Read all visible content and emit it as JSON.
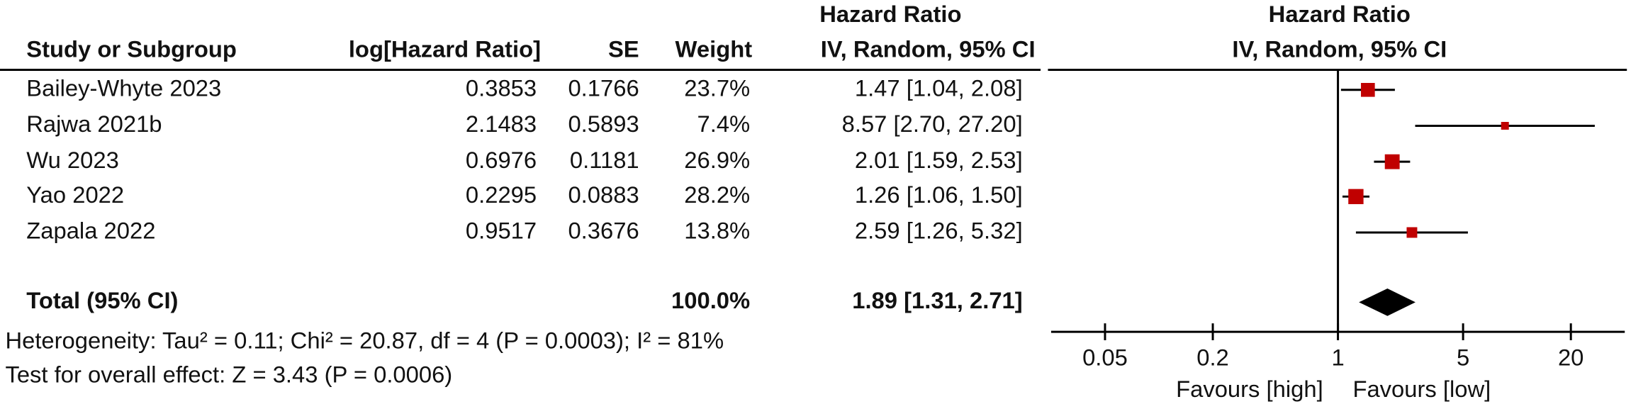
{
  "table": {
    "group_header": "Hazard Ratio",
    "columns": [
      "Study or Subgroup",
      "log[Hazard Ratio]",
      "SE",
      "Weight",
      "IV, Random, 95% CI"
    ],
    "rows": [
      [
        "Bailey-Whyte 2023",
        "0.3853",
        "0.1766",
        "23.7%",
        "1.47 [1.04, 2.08]"
      ],
      [
        "Rajwa 2021b",
        "2.1483",
        "0.5893",
        "7.4%",
        "8.57 [2.70, 27.20]"
      ],
      [
        "Wu 2023",
        "0.6976",
        "0.1181",
        "26.9%",
        "2.01 [1.59, 2.53]"
      ],
      [
        "Yao 2022",
        "0.2295",
        "0.0883",
        "28.2%",
        "1.26 [1.06, 1.50]"
      ],
      [
        "Zapala 2022",
        "0.9517",
        "0.3676",
        "13.8%",
        "2.59 [1.26, 5.32]"
      ]
    ],
    "total": [
      "Total (95% CI)",
      "100.0%",
      "1.89 [1.31, 2.71]"
    ],
    "heterogeneity": "Heterogeneity: Tau² = 0.11; Chi² = 20.87, df = 4 (P = 0.0003); I² = 81%",
    "overall_effect": "Test for overall effect: Z = 3.43 (P = 0.0006)"
  },
  "chart_data": {
    "type": "forest",
    "title": "Hazard Ratio",
    "subtitle": "IV, Random, 95% CI",
    "hr": [
      1.47,
      8.57,
      2.01,
      1.26,
      2.59
    ],
    "ci_low": [
      1.04,
      2.7,
      1.59,
      1.06,
      1.26
    ],
    "ci_high": [
      2.08,
      27.2,
      2.53,
      1.5,
      5.32
    ],
    "weights": [
      23.7,
      7.4,
      26.9,
      28.2,
      13.8
    ],
    "total": {
      "hr": 1.89,
      "ci_low": 1.31,
      "ci_high": 2.71
    },
    "color": "#c00000",
    "xscale": "log",
    "xlim": [
      0.025,
      40
    ],
    "xticks": [
      0.05,
      0.2,
      1,
      5,
      20
    ],
    "xlabel_left": "Favours [high]",
    "xlabel_right": "Favours [low]"
  }
}
